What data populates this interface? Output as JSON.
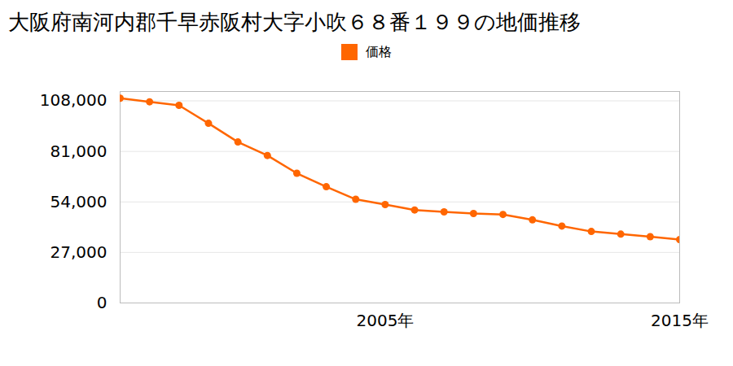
{
  "chart_data": {
    "type": "line",
    "title": "大阪府南河内郡千早赤阪村大字小吹６８番１９９の地価推移",
    "x": [
      1996,
      1997,
      1998,
      1999,
      2000,
      2001,
      2002,
      2003,
      2004,
      2005,
      2006,
      2007,
      2008,
      2009,
      2010,
      2011,
      2012,
      2013,
      2014,
      2015
    ],
    "series": [
      {
        "name": "価格",
        "color": "#ff6600",
        "marker": "circle",
        "values": [
          109400,
          107500,
          105600,
          96000,
          86000,
          78800,
          69300,
          62100,
          55400,
          52600,
          49700,
          48700,
          47800,
          47300,
          44400,
          41100,
          38200,
          36800,
          35400,
          33900
        ]
      }
    ],
    "xlim": [
      1996,
      2015
    ],
    "xticks": [
      {
        "value": 2005,
        "label": "2005年"
      },
      {
        "value": 2015,
        "label": "2015年"
      }
    ],
    "ylim": [
      0,
      113000
    ],
    "yticks": [
      0,
      {
        "value": 27000,
        "label": "27,000"
      },
      {
        "value": 54000,
        "label": "54,000"
      },
      {
        "value": 81000,
        "label": "81,000"
      },
      {
        "value": 108000,
        "label": "108,000"
      }
    ],
    "grid": true,
    "legend": "top"
  }
}
